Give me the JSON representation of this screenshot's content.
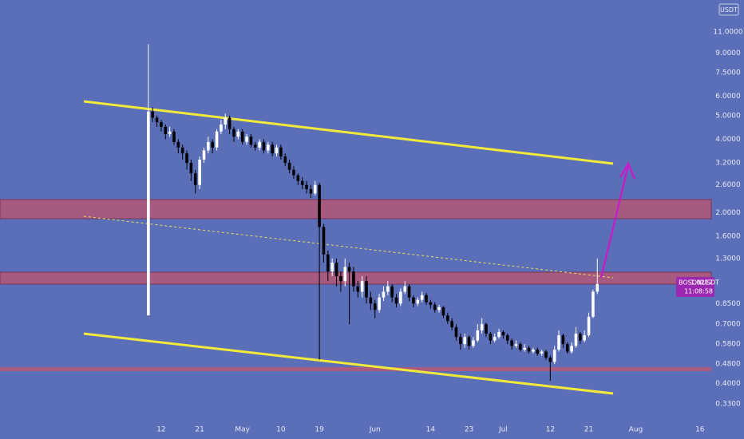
{
  "chart_data": {
    "type": "candlestick",
    "symbol": "BOSONUSDT",
    "currency": "USDT",
    "countdown": "11:08:58",
    "log_scale": true,
    "grid": false,
    "up_color": "#ffffff",
    "down_color": "#000000",
    "label_color": "#9c27b0",
    "xlim": [
      -25.7,
      141.4
    ],
    "ylim": [
      0.286,
      14.87
    ],
    "xticks": [
      12,
      21,
      {
        "value": 31,
        "label": "May"
      },
      {
        "value": 40,
        "label": "10"
      },
      {
        "value": 49,
        "label": "19"
      },
      {
        "value": 62,
        "label": "Jun"
      },
      {
        "value": 75,
        "label": "14"
      },
      {
        "value": 84,
        "label": "23"
      },
      {
        "value": 92,
        "label": "Jul"
      },
      {
        "value": 103,
        "label": "12"
      },
      {
        "value": 112,
        "label": "21"
      },
      {
        "value": 123,
        "label": "Aug"
      },
      {
        "value": 138,
        "label": "16"
      }
    ],
    "yticks": [
      {
        "value": 11,
        "label": "11.0000"
      },
      {
        "value": 9,
        "label": "9.0000"
      },
      {
        "value": 7.5,
        "label": "7.5000"
      },
      {
        "value": 6,
        "label": "6.0000"
      },
      {
        "value": 5,
        "label": "5.0000"
      },
      {
        "value": 4,
        "label": "4.0000"
      },
      {
        "value": 3.2,
        "label": "3.2000"
      },
      {
        "value": 2.6,
        "label": "2.6000"
      },
      {
        "value": 2,
        "label": "2.0000"
      },
      {
        "value": 1.6,
        "label": "1.6000"
      },
      {
        "value": 1.3,
        "label": "1.3000"
      },
      {
        "value": 0.85,
        "label": "0.8500"
      },
      {
        "value": 0.7,
        "label": "0.7000"
      },
      {
        "value": 0.58,
        "label": "0.5800"
      },
      {
        "value": 0.48,
        "label": "0.4800"
      },
      {
        "value": 0.4,
        "label": "0.4000"
      },
      {
        "value": 0.33,
        "label": "0.3300"
      }
    ],
    "x": [
      9,
      10,
      11,
      12,
      13,
      14,
      15,
      16,
      17,
      18,
      19,
      20,
      21,
      22,
      23,
      24,
      25,
      26,
      27,
      28,
      29,
      30,
      31,
      32,
      33,
      34,
      35,
      36,
      37,
      38,
      39,
      40,
      41,
      42,
      43,
      44,
      45,
      46,
      47,
      48,
      49,
      50,
      51,
      52,
      53,
      54,
      55,
      56,
      57,
      58,
      59,
      60,
      61,
      62,
      63,
      64,
      65,
      66,
      67,
      68,
      69,
      70,
      71,
      72,
      73,
      74,
      75,
      76,
      77,
      78,
      79,
      80,
      81,
      82,
      83,
      84,
      85,
      86,
      87,
      88,
      89,
      90,
      91,
      92,
      93,
      94,
      95,
      96,
      97,
      98,
      99,
      100,
      101,
      102,
      103,
      104,
      105,
      106,
      107,
      108,
      109,
      110,
      111,
      112,
      113,
      114
    ],
    "open": [
      0.76,
      5.2,
      4.9,
      4.7,
      4.5,
      4.2,
      4.3,
      3.9,
      3.7,
      3.5,
      3.2,
      2.9,
      2.6,
      3.3,
      3.6,
      3.9,
      3.7,
      4.3,
      4.6,
      4.9,
      4.4,
      4.1,
      4.3,
      3.9,
      4.1,
      3.8,
      3.7,
      3.9,
      3.6,
      3.8,
      3.5,
      3.7,
      3.4,
      3.2,
      3.0,
      2.85,
      2.7,
      2.6,
      2.5,
      2.4,
      2.6,
      1.75,
      1.35,
      1.15,
      1.25,
      1.1,
      1.05,
      1.2,
      1.15,
      1.0,
      0.95,
      1.05,
      0.9,
      0.85,
      0.8,
      0.9,
      0.95,
      1.0,
      0.9,
      0.85,
      0.95,
      1.0,
      0.9,
      0.85,
      0.88,
      0.92,
      0.86,
      0.84,
      0.8,
      0.82,
      0.76,
      0.72,
      0.68,
      0.62,
      0.58,
      0.62,
      0.57,
      0.6,
      0.66,
      0.7,
      0.64,
      0.6,
      0.62,
      0.65,
      0.63,
      0.6,
      0.57,
      0.58,
      0.55,
      0.56,
      0.54,
      0.55,
      0.53,
      0.54,
      0.51,
      0.49,
      0.55,
      0.63,
      0.58,
      0.54,
      0.57,
      0.64,
      0.6,
      0.63,
      0.75,
      0.95
    ],
    "high": [
      9.8,
      5.4,
      5.0,
      4.8,
      4.6,
      4.5,
      4.4,
      4.0,
      3.8,
      3.6,
      3.3,
      3.0,
      3.4,
      3.7,
      4.1,
      4.0,
      4.4,
      4.8,
      5.1,
      5.0,
      4.5,
      4.4,
      4.4,
      4.2,
      4.2,
      3.9,
      4.0,
      4.0,
      3.9,
      3.9,
      3.8,
      3.8,
      3.5,
      3.3,
      3.1,
      2.9,
      2.8,
      2.7,
      2.6,
      2.7,
      2.65,
      1.8,
      1.4,
      1.3,
      1.3,
      1.15,
      1.3,
      1.25,
      1.2,
      1.05,
      1.1,
      1.1,
      0.95,
      0.88,
      0.93,
      1.0,
      1.05,
      1.02,
      0.93,
      0.98,
      1.05,
      1.02,
      0.92,
      0.9,
      0.95,
      0.94,
      0.88,
      0.86,
      0.84,
      0.83,
      0.78,
      0.74,
      0.7,
      0.64,
      0.64,
      0.63,
      0.62,
      0.7,
      0.74,
      0.71,
      0.65,
      0.64,
      0.67,
      0.66,
      0.64,
      0.61,
      0.6,
      0.59,
      0.58,
      0.57,
      0.56,
      0.56,
      0.55,
      0.55,
      0.52,
      0.57,
      0.66,
      0.64,
      0.59,
      0.59,
      0.68,
      0.65,
      0.66,
      0.78,
      0.97,
      1.3
    ],
    "low": [
      0.76,
      4.7,
      4.5,
      4.3,
      4.0,
      4.1,
      3.8,
      3.5,
      3.3,
      3.0,
      2.7,
      2.4,
      2.5,
      3.2,
      3.5,
      3.5,
      3.6,
      4.2,
      4.4,
      4.2,
      3.9,
      4.0,
      3.8,
      3.8,
      3.7,
      3.6,
      3.6,
      3.5,
      3.5,
      3.4,
      3.4,
      3.3,
      3.1,
      2.9,
      2.75,
      2.6,
      2.5,
      2.4,
      2.3,
      2.35,
      0.5,
      1.25,
      1.05,
      1.1,
      1.0,
      0.95,
      1.0,
      0.7,
      0.95,
      0.9,
      0.9,
      0.85,
      0.8,
      0.74,
      0.78,
      0.87,
      0.92,
      0.86,
      0.82,
      0.83,
      0.93,
      0.87,
      0.82,
      0.83,
      0.86,
      0.84,
      0.81,
      0.78,
      0.78,
      0.74,
      0.7,
      0.66,
      0.6,
      0.55,
      0.56,
      0.55,
      0.56,
      0.59,
      0.64,
      0.62,
      0.58,
      0.59,
      0.61,
      0.61,
      0.58,
      0.55,
      0.56,
      0.54,
      0.54,
      0.53,
      0.53,
      0.52,
      0.52,
      0.5,
      0.41,
      0.48,
      0.54,
      0.56,
      0.53,
      0.53,
      0.56,
      0.58,
      0.59,
      0.62,
      0.74,
      0.93
    ],
    "close": [
      5.2,
      4.9,
      4.7,
      4.5,
      4.2,
      4.3,
      3.9,
      3.7,
      3.5,
      3.2,
      2.9,
      2.6,
      3.3,
      3.6,
      3.9,
      3.7,
      4.3,
      4.6,
      4.9,
      4.4,
      4.1,
      4.3,
      3.9,
      4.1,
      3.8,
      3.7,
      3.9,
      3.6,
      3.8,
      3.5,
      3.7,
      3.4,
      3.2,
      3.0,
      2.85,
      2.7,
      2.6,
      2.5,
      2.4,
      2.6,
      1.75,
      1.35,
      1.15,
      1.25,
      1.1,
      1.05,
      1.2,
      1.15,
      1.0,
      0.95,
      1.05,
      0.9,
      0.85,
      0.8,
      0.9,
      0.95,
      1.0,
      0.9,
      0.85,
      0.95,
      1.0,
      0.9,
      0.85,
      0.88,
      0.92,
      0.86,
      0.84,
      0.8,
      0.82,
      0.76,
      0.72,
      0.68,
      0.62,
      0.58,
      0.62,
      0.57,
      0.6,
      0.66,
      0.7,
      0.64,
      0.6,
      0.62,
      0.65,
      0.63,
      0.6,
      0.57,
      0.58,
      0.55,
      0.56,
      0.54,
      0.55,
      0.53,
      0.54,
      0.51,
      0.49,
      0.55,
      0.63,
      0.58,
      0.54,
      0.57,
      0.64,
      0.6,
      0.63,
      0.75,
      0.95,
      1.0217
    ]
  }
}
